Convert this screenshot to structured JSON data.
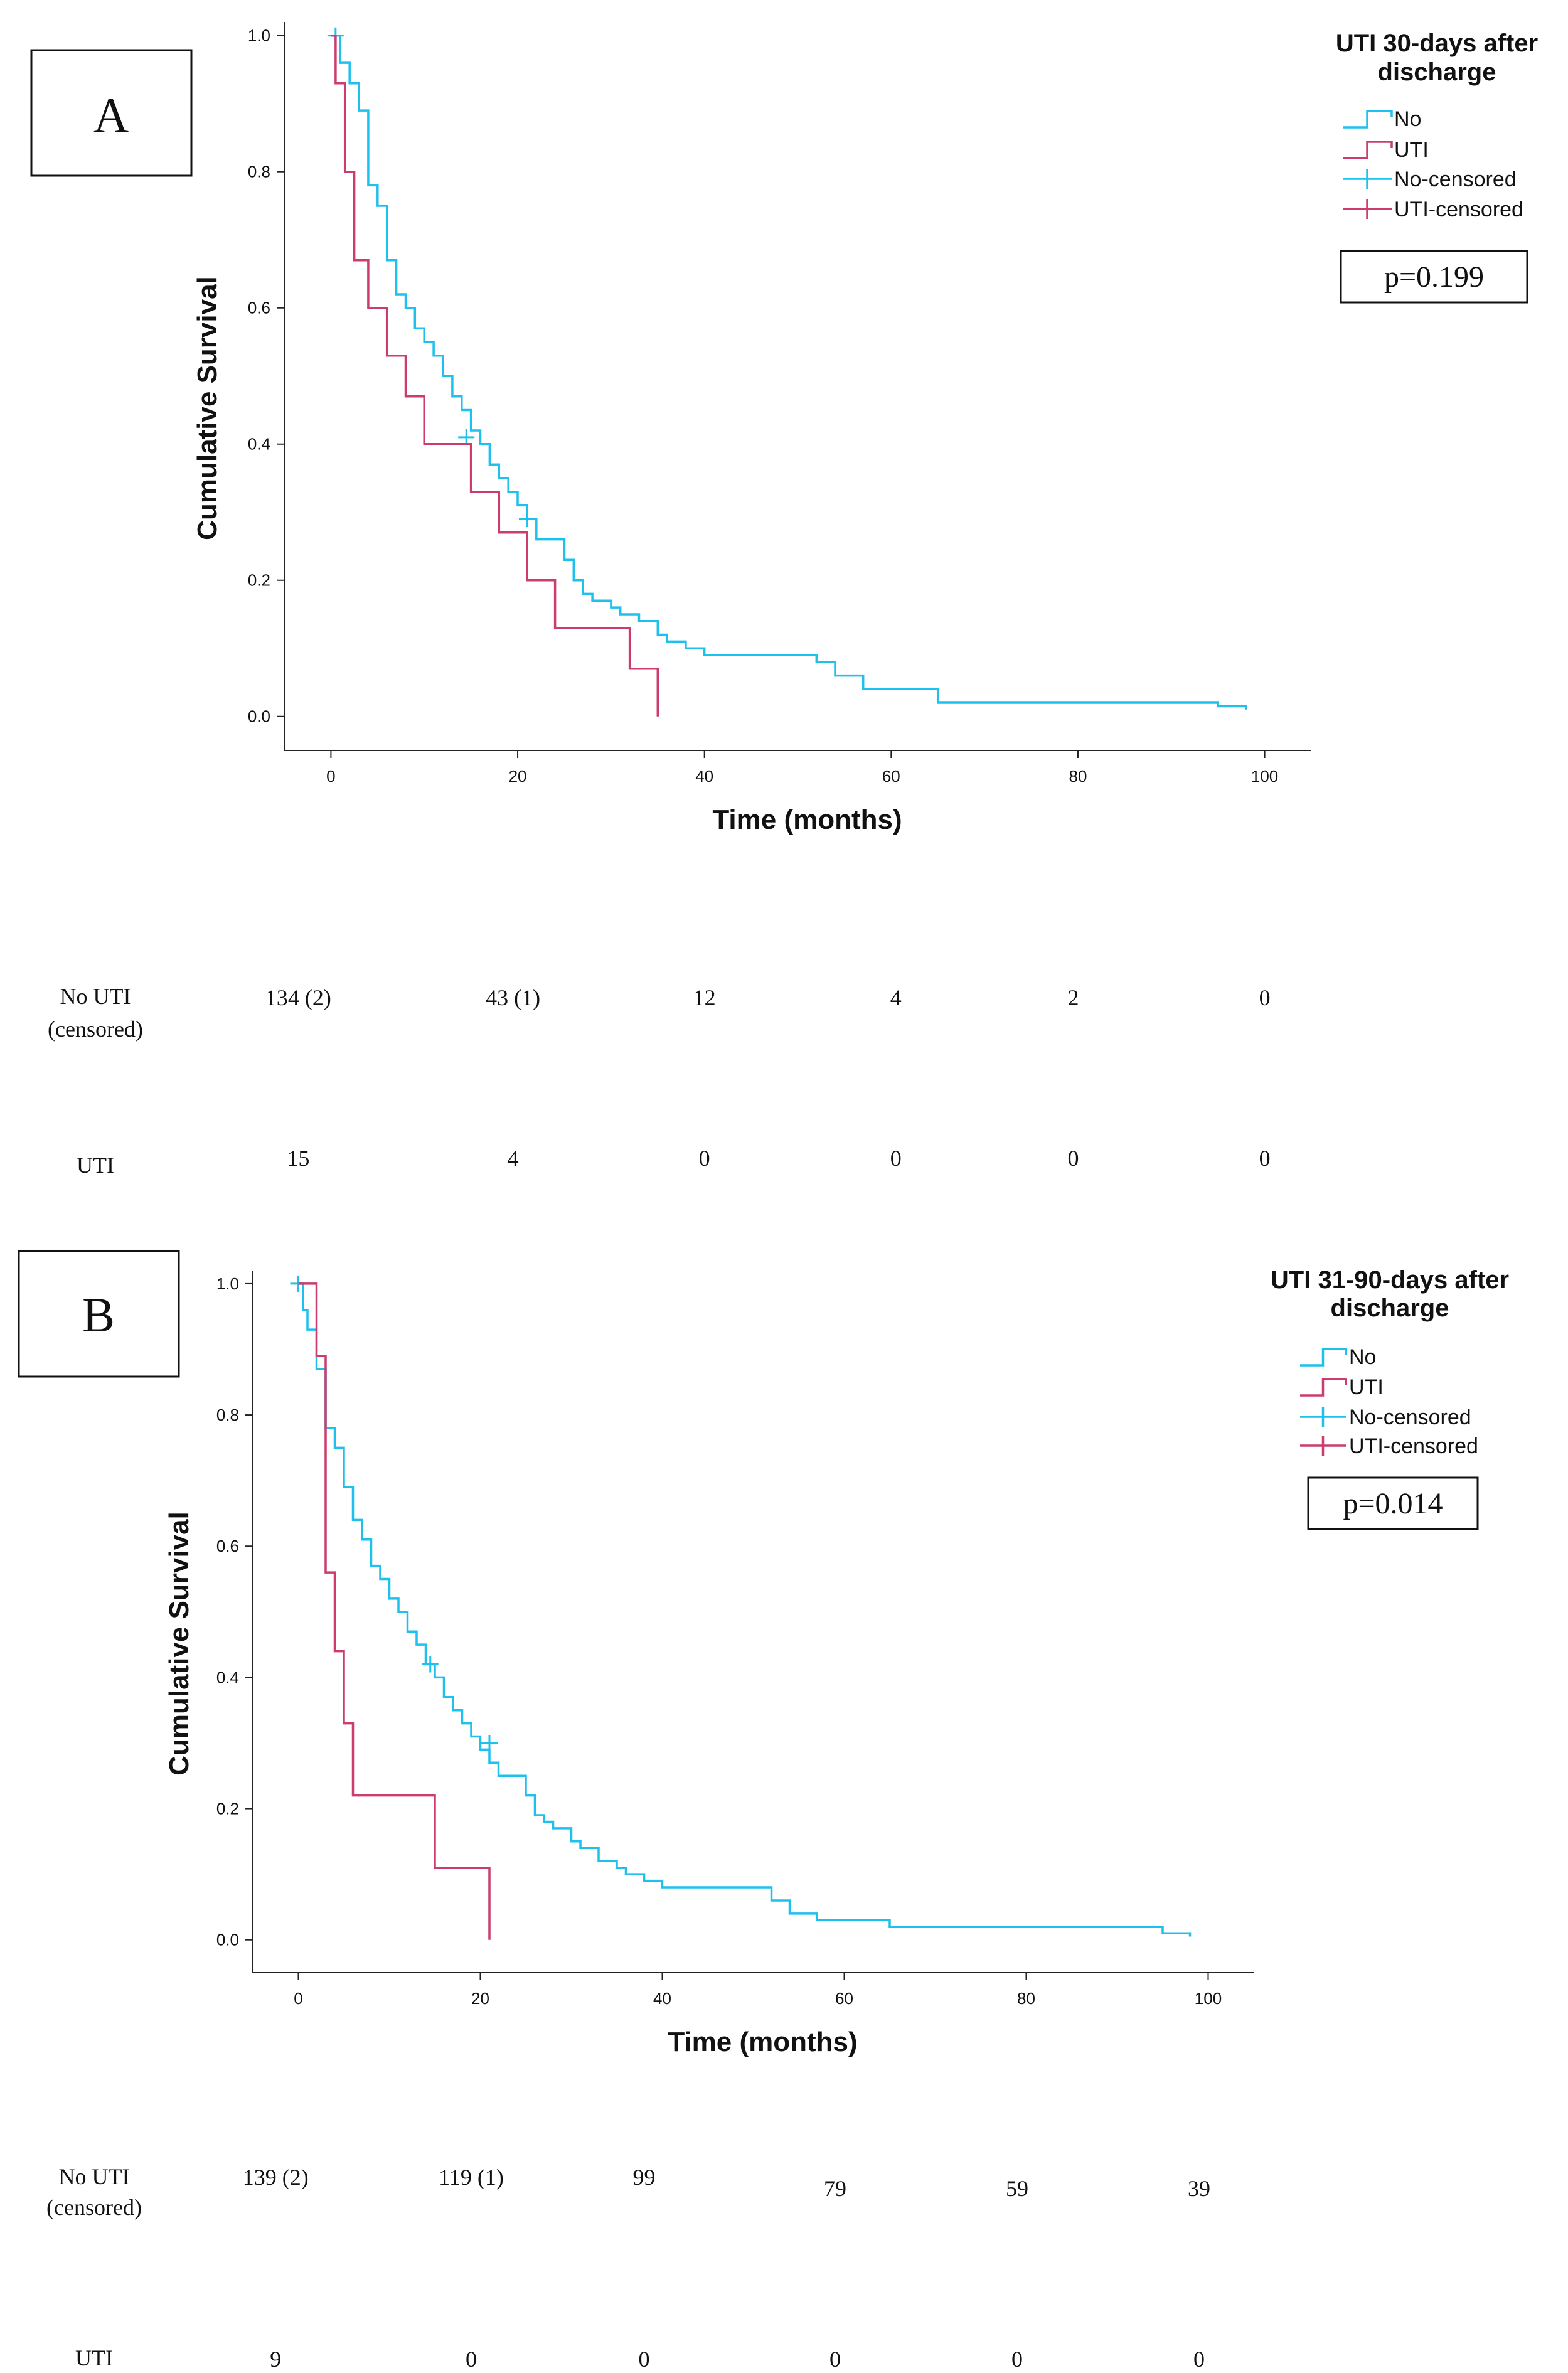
{
  "chart_data": [
    {
      "type": "line",
      "panel_label": "A",
      "legend_title": [
        "UTI 30-days after",
        "discharge"
      ],
      "legend_entries": [
        "No",
        "UTI",
        "No-censored",
        "UTI-censored"
      ],
      "legend_placement": "top-right",
      "p_value": "p=0.199",
      "xlabel": "Time (months)",
      "ylabel": "Cumulative Survival",
      "xlim": [
        -5,
        105
      ],
      "ylim": [
        -0.05,
        1.02
      ],
      "xticks": [
        "0",
        "20",
        "40",
        "60",
        "80",
        "100"
      ],
      "yticks": [
        "0.0",
        "0.2",
        "0.4",
        "0.6",
        "0.8",
        "1.0"
      ],
      "grid": false,
      "colors": {
        "no": "#1ec0ee",
        "uti": "#cc3d6e"
      },
      "series": [
        {
          "key": "no",
          "x": [
            0,
            1,
            2,
            3,
            4,
            5,
            6,
            7,
            8,
            9,
            10,
            11,
            12,
            13,
            14,
            15,
            16,
            17,
            18,
            19,
            20,
            21,
            22,
            25,
            26,
            27,
            28,
            30,
            31,
            33,
            35,
            36,
            38,
            40,
            52,
            54,
            57,
            65,
            95,
            98
          ],
          "y": [
            1.0,
            0.96,
            0.93,
            0.89,
            0.78,
            0.75,
            0.67,
            0.62,
            0.6,
            0.57,
            0.55,
            0.53,
            0.5,
            0.47,
            0.45,
            0.42,
            0.4,
            0.37,
            0.35,
            0.33,
            0.31,
            0.29,
            0.26,
            0.23,
            0.2,
            0.18,
            0.17,
            0.16,
            0.15,
            0.14,
            0.12,
            0.11,
            0.1,
            0.09,
            0.08,
            0.06,
            0.04,
            0.02,
            0.015,
            0.01
          ],
          "censored": [
            {
              "x": 0.5,
              "y": 1.0
            },
            {
              "x": 14.5,
              "y": 0.41
            },
            {
              "x": 21,
              "y": 0.29
            }
          ]
        },
        {
          "key": "uti",
          "x": [
            0,
            0.5,
            1.5,
            2.5,
            4,
            6,
            8,
            10,
            15,
            18,
            21,
            24,
            32,
            35
          ],
          "y": [
            1.0,
            0.93,
            0.8,
            0.67,
            0.6,
            0.53,
            0.47,
            0.4,
            0.33,
            0.27,
            0.2,
            0.13,
            0.07,
            0.0
          ],
          "censored": []
        }
      ],
      "risk_table": {
        "columns_x": [
          -3.5,
          19.5,
          40,
          60.5,
          79.5,
          100
        ],
        "rows": [
          {
            "label": [
              "No UTI",
              "(censored)"
            ],
            "values": [
              "134 (2)",
              "43 (1)",
              "12",
              "4",
              "2",
              "0"
            ]
          },
          {
            "label": [
              "UTI"
            ],
            "values": [
              "15",
              "4",
              "0",
              "0",
              "0",
              "0"
            ]
          }
        ]
      }
    },
    {
      "type": "line",
      "panel_label": "B",
      "legend_title": [
        "UTI 31-90-days after",
        "discharge"
      ],
      "legend_entries": [
        "No",
        "UTI",
        "No-censored",
        "UTI-censored"
      ],
      "legend_placement": "top-right",
      "p_value": "p=0.014",
      "xlabel": "Time (months)",
      "ylabel": "Cumulative Survival",
      "xlim": [
        -5,
        105
      ],
      "ylim": [
        -0.05,
        1.02
      ],
      "xticks": [
        "0",
        "20",
        "40",
        "60",
        "80",
        "100"
      ],
      "yticks": [
        "0.0",
        "0.2",
        "0.4",
        "0.6",
        "0.8",
        "1.0"
      ],
      "grid": false,
      "colors": {
        "no": "#1ec0ee",
        "uti": "#cc3d6e"
      },
      "series": [
        {
          "key": "no",
          "x": [
            0,
            0.5,
            1,
            2,
            3,
            4,
            5,
            6,
            7,
            8,
            9,
            10,
            11,
            12,
            13,
            14,
            15,
            16,
            17,
            18,
            19,
            20,
            21,
            22,
            25,
            26,
            27,
            28,
            30,
            31,
            33,
            35,
            36,
            38,
            40,
            52,
            54,
            57,
            65,
            95,
            98
          ],
          "y": [
            1.0,
            0.96,
            0.93,
            0.87,
            0.78,
            0.75,
            0.69,
            0.64,
            0.61,
            0.57,
            0.55,
            0.52,
            0.5,
            0.47,
            0.45,
            0.42,
            0.4,
            0.37,
            0.35,
            0.33,
            0.31,
            0.29,
            0.27,
            0.25,
            0.22,
            0.19,
            0.18,
            0.17,
            0.15,
            0.14,
            0.12,
            0.11,
            0.1,
            0.09,
            0.08,
            0.06,
            0.04,
            0.03,
            0.02,
            0.01,
            0.005
          ],
          "censored": [
            {
              "x": 0,
              "y": 1.0
            },
            {
              "x": 14.5,
              "y": 0.42
            },
            {
              "x": 21,
              "y": 0.3
            }
          ]
        },
        {
          "key": "uti",
          "x": [
            0,
            2,
            3,
            4,
            5,
            6,
            15,
            21
          ],
          "y": [
            1.0,
            0.89,
            0.56,
            0.44,
            0.33,
            0.22,
            0.11,
            0.0
          ],
          "censored": []
        }
      ],
      "risk_table": {
        "columns_x": [
          -2.5,
          19,
          38,
          59,
          79,
          99
        ],
        "rows": [
          {
            "label": [
              "No UTI",
              "(censored)"
            ],
            "values": [
              "139 (2)",
              "119 (1)",
              "99",
              "79",
              "59",
              "39"
            ]
          },
          {
            "label": [
              "UTI"
            ],
            "values": [
              "9",
              "0",
              "0",
              "0",
              "0",
              "0"
            ]
          }
        ]
      }
    }
  ]
}
